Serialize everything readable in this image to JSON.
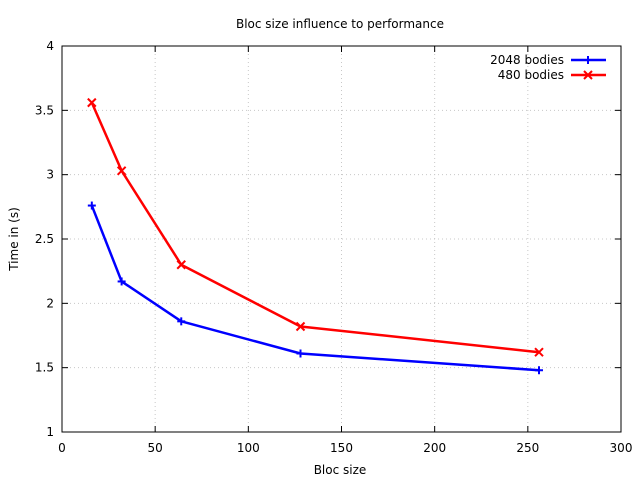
{
  "chart_data": {
    "type": "line",
    "title": "Bloc size influence to performance",
    "xlabel": "Bloc size",
    "ylabel": "Time in (s)",
    "xlim": [
      0,
      300
    ],
    "ylim": [
      1,
      4
    ],
    "xticks": [
      0,
      50,
      100,
      150,
      200,
      250,
      300
    ],
    "yticks": [
      1,
      1.5,
      2,
      2.5,
      3,
      3.5,
      4
    ],
    "xtick_labels": [
      "0",
      "50",
      "100",
      "150",
      "200",
      "250",
      "300"
    ],
    "ytick_labels": [
      "1",
      "1.5",
      "2",
      "2.5",
      "3",
      "3.5",
      "4"
    ],
    "grid": true,
    "legend_position": "top-right",
    "series": [
      {
        "name": "2048 bodies",
        "color": "#0000ff",
        "marker": "plus",
        "x": [
          16,
          32,
          64,
          128,
          256
        ],
        "y": [
          2.76,
          2.17,
          1.86,
          1.61,
          1.48
        ]
      },
      {
        "name": "480 bodies",
        "color": "#ff0000",
        "marker": "cross",
        "x": [
          16,
          32,
          64,
          128,
          256
        ],
        "y": [
          3.56,
          3.03,
          2.3,
          1.82,
          1.62
        ]
      }
    ]
  }
}
